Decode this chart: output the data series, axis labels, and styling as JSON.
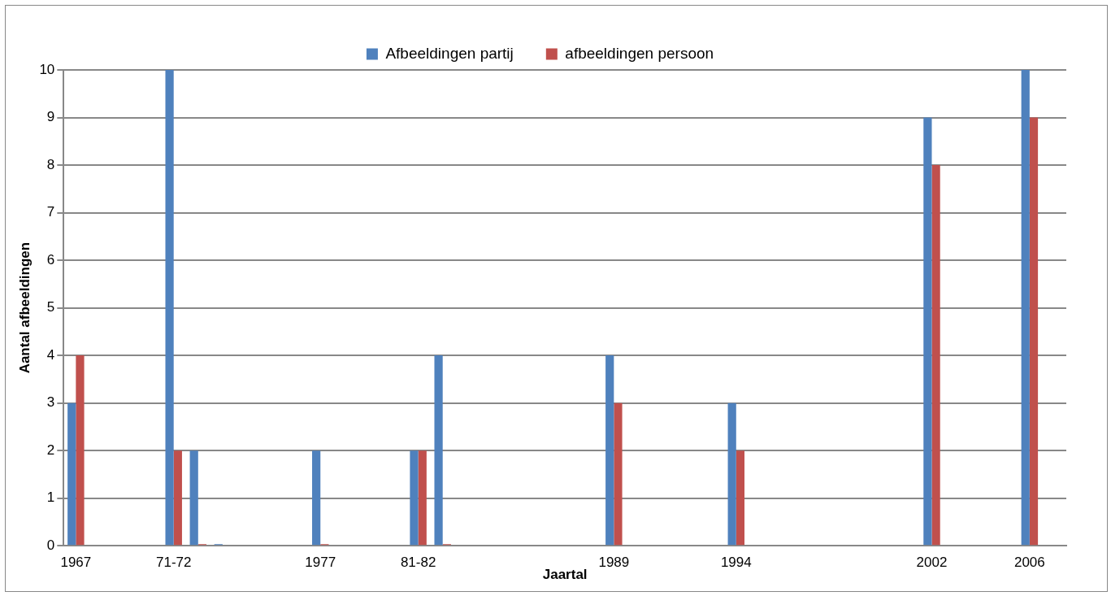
{
  "chart_data": {
    "type": "bar",
    "xlabel": "Jaartal",
    "ylabel": "Aantal afbeeldingen",
    "categories": [
      "1967",
      null,
      null,
      null,
      "71-72",
      null,
      null,
      null,
      null,
      null,
      "1977",
      null,
      null,
      null,
      "81-82",
      null,
      null,
      null,
      null,
      null,
      null,
      null,
      "1989",
      null,
      null,
      null,
      null,
      "1994",
      null,
      null,
      null,
      null,
      null,
      null,
      null,
      "2002",
      null,
      null,
      null,
      "2006",
      null
    ],
    "series": [
      {
        "name": "Afbeeldingen partij",
        "color": "#4f81bd",
        "values": [
          3,
          null,
          null,
          null,
          10,
          2,
          0,
          null,
          null,
          null,
          2,
          null,
          null,
          null,
          2,
          4,
          null,
          null,
          null,
          null,
          null,
          null,
          4,
          null,
          null,
          null,
          null,
          3,
          null,
          null,
          null,
          null,
          null,
          null,
          null,
          9,
          null,
          null,
          null,
          10,
          null
        ]
      },
      {
        "name": "afbeeldingen persoon",
        "color": "#c0504d",
        "values": [
          4,
          null,
          null,
          null,
          2,
          0,
          null,
          null,
          null,
          null,
          0,
          null,
          null,
          null,
          2,
          0,
          null,
          null,
          null,
          null,
          null,
          null,
          3,
          null,
          null,
          null,
          null,
          2,
          null,
          null,
          null,
          null,
          null,
          null,
          null,
          8,
          null,
          null,
          null,
          9,
          null
        ]
      }
    ],
    "ylim": [
      0,
      10
    ],
    "yticks": [
      0,
      1,
      2,
      3,
      4,
      5,
      6,
      7,
      8,
      9,
      10
    ],
    "grid": "y",
    "legend": "top"
  }
}
